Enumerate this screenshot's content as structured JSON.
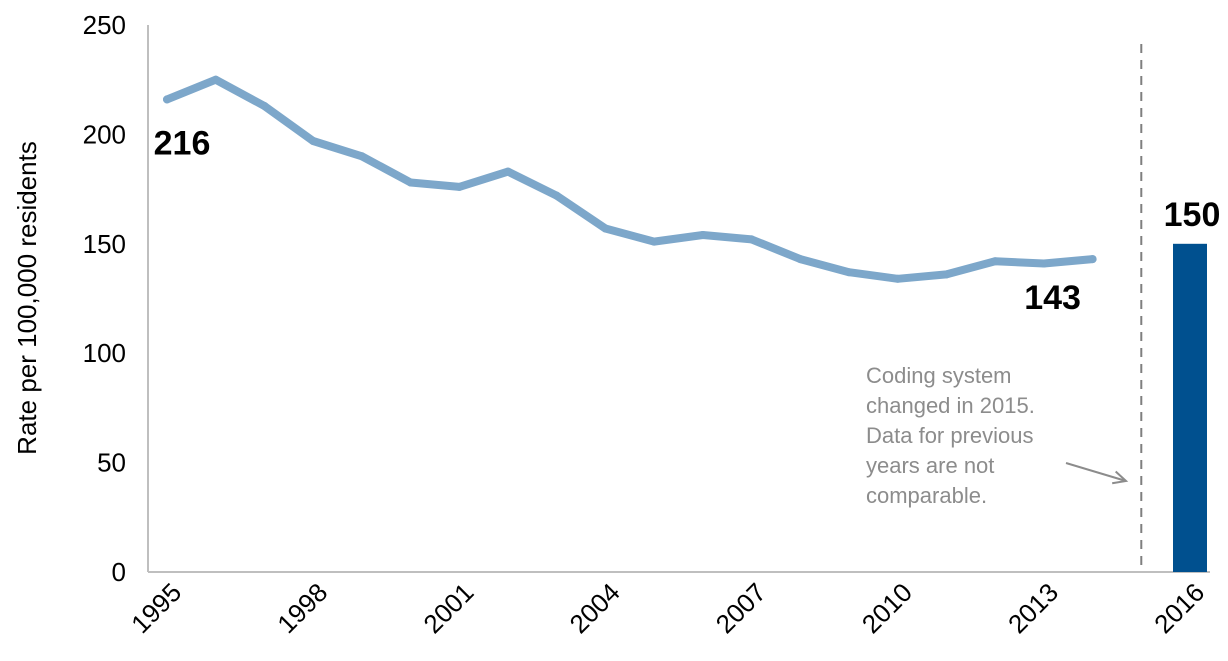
{
  "chart_data": {
    "type": "line",
    "ylabel": "Rate per 100,000 residents",
    "xlabel": "",
    "ylim": [
      0,
      250
    ],
    "yticks": [
      "0",
      "50",
      "100",
      "150",
      "200",
      "250"
    ],
    "xticks": [
      "1995",
      "1998",
      "2001",
      "2004",
      "2007",
      "2010",
      "2013",
      "2016"
    ],
    "grid": false,
    "series": [
      {
        "type": "line",
        "color": "#7da7ca",
        "x": [
          1995,
          1996,
          1997,
          1998,
          1999,
          2000,
          2001,
          2002,
          2003,
          2004,
          2005,
          2006,
          2007,
          2008,
          2009,
          2010,
          2011,
          2012,
          2013,
          2014
        ],
        "values": [
          216,
          225,
          213,
          197,
          190,
          178,
          176,
          183,
          172,
          157,
          151,
          154,
          152,
          143,
          137,
          134,
          136,
          142,
          141,
          143
        ]
      },
      {
        "type": "bar",
        "color": "#00508f",
        "x": [
          2016
        ],
        "values": [
          150
        ]
      }
    ],
    "data_labels": [
      {
        "text": "216",
        "x": 1995,
        "y": 216
      },
      {
        "text": "143",
        "x": 2014,
        "y": 143
      },
      {
        "text": "150",
        "x": 2016,
        "y": 150
      }
    ],
    "annotation": {
      "lines": [
        "Coding system",
        "changed in 2015.",
        "Data for previous",
        "years are not",
        "comparable."
      ],
      "divider_x": 2015
    }
  }
}
